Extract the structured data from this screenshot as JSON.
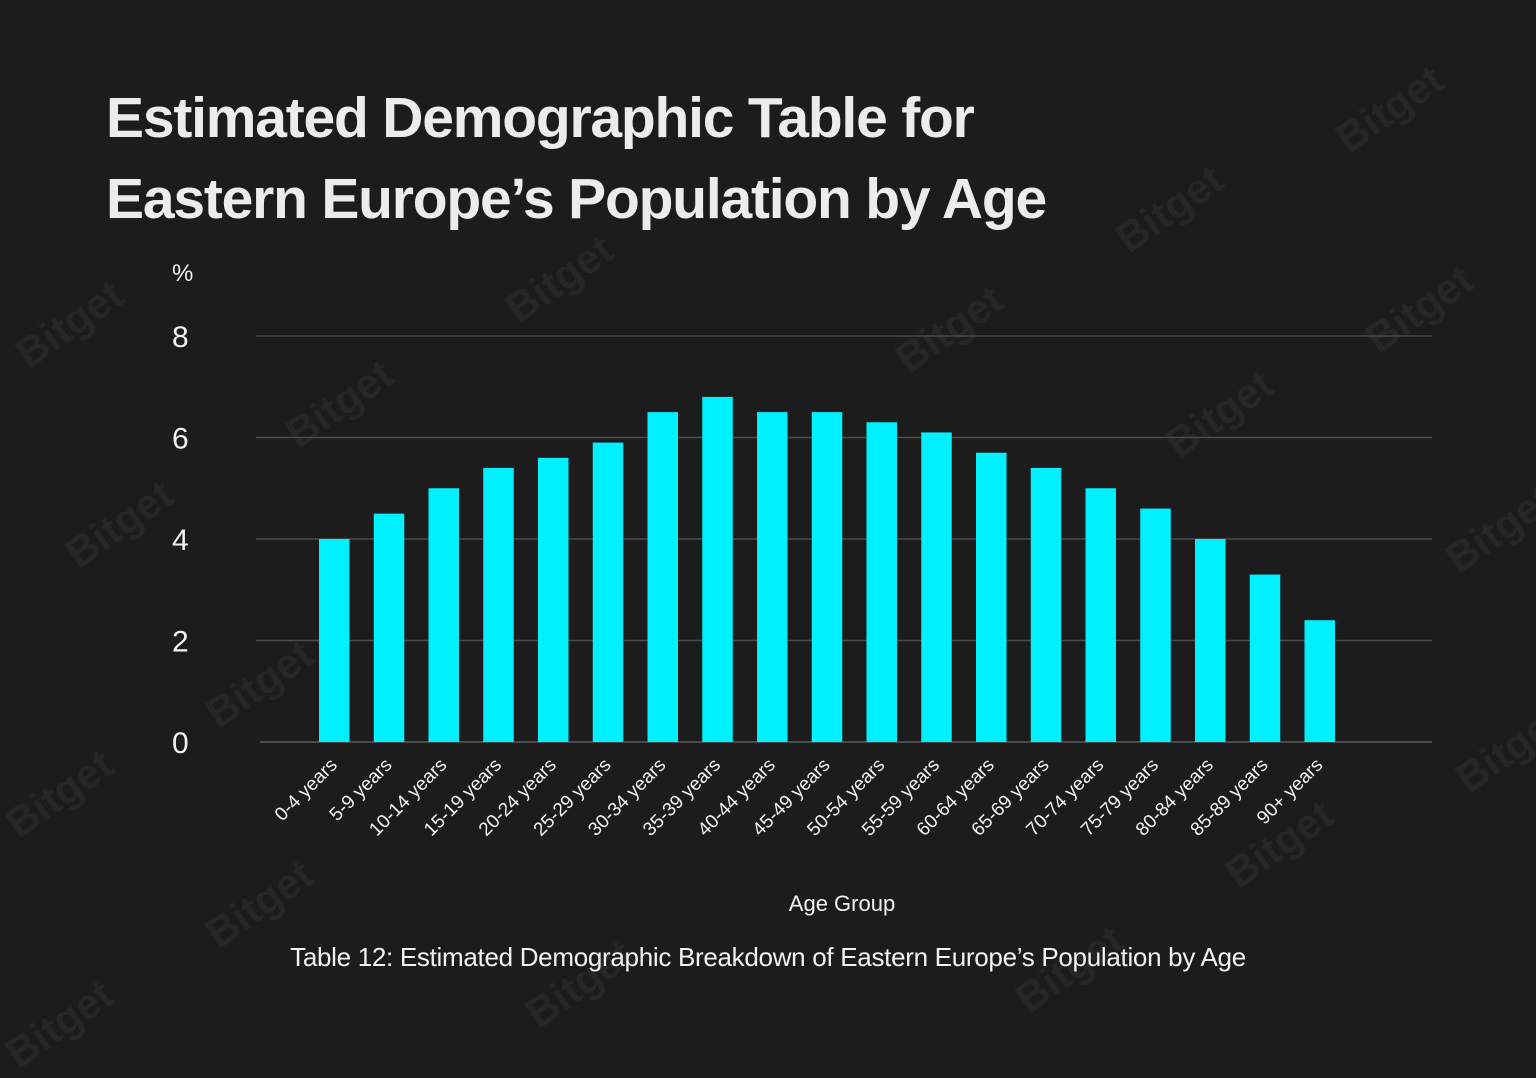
{
  "watermark": "Bitget",
  "chart_data": {
    "type": "bar",
    "title": "Estimated Demographic Table for Eastern Europe’s Population by Age",
    "title_lines": [
      "Estimated Demographic Table for",
      "Eastern Europe’s Population by Age"
    ],
    "ylabel": "%",
    "xlabel": "Age Group",
    "caption": "Table 12: Estimated Demographic Breakdown of Eastern Europe’s Population by Age",
    "ylim": [
      0,
      8
    ],
    "yticks": [
      0,
      2,
      4,
      6,
      8
    ],
    "grid": true,
    "legend": "none",
    "bar_color": "#00f0ff",
    "categories": [
      "0-4 years",
      "5-9 years",
      "10-14 years",
      "15-19 years",
      "20-24 years",
      "25-29 years",
      "30-34 years",
      "35-39 years",
      "40-44 years",
      "45-49 years",
      "50-54 years",
      "55-59 years",
      "60-64 years",
      "65-69 years",
      "70-74 years",
      "75-79 years",
      "80-84 years",
      "85-89 years",
      "90+ years"
    ],
    "values": [
      4.0,
      4.5,
      5.0,
      5.4,
      5.6,
      5.9,
      6.5,
      6.8,
      6.5,
      6.5,
      6.3,
      6.1,
      5.7,
      5.4,
      5.0,
      4.6,
      4.0,
      3.3,
      2.4
    ]
  }
}
